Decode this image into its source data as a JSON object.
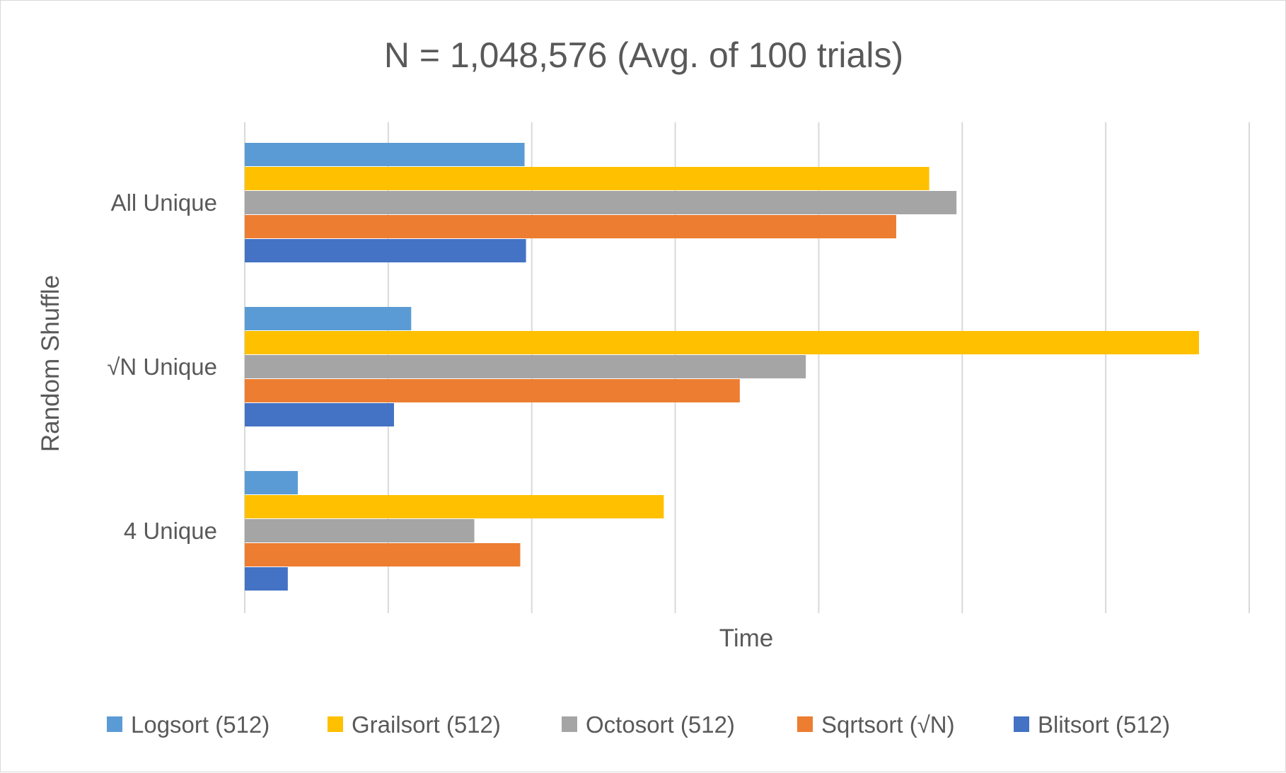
{
  "chart_data": {
    "type": "bar",
    "orientation": "horizontal",
    "title": "N = 1,048,576  (Avg. of 100 trials)",
    "xlabel": "Time",
    "ylabel": "Random Shuffle",
    "xlim": [
      0,
      7
    ],
    "grid": true,
    "legend": "bottom",
    "x_tick_labels_shown": false,
    "categories": [
      "All Unique",
      "√N Unique",
      "4 Unique"
    ],
    "series": [
      {
        "name": "Logsort (512)",
        "color": "#5B9BD5",
        "values": [
          1.95,
          1.16,
          0.37
        ]
      },
      {
        "name": "Grailsort (512)",
        "color": "#FFC000",
        "values": [
          4.77,
          6.65,
          2.92
        ]
      },
      {
        "name": "Octosort (512)",
        "color": "#A5A5A5",
        "values": [
          4.96,
          3.91,
          1.6
        ]
      },
      {
        "name": "Sqrtsort (√N)",
        "color": "#ED7D31",
        "values": [
          4.54,
          3.45,
          1.92
        ]
      },
      {
        "name": "Blitsort (512)",
        "color": "#4472C4",
        "values": [
          1.96,
          1.04,
          0.3
        ]
      }
    ]
  }
}
